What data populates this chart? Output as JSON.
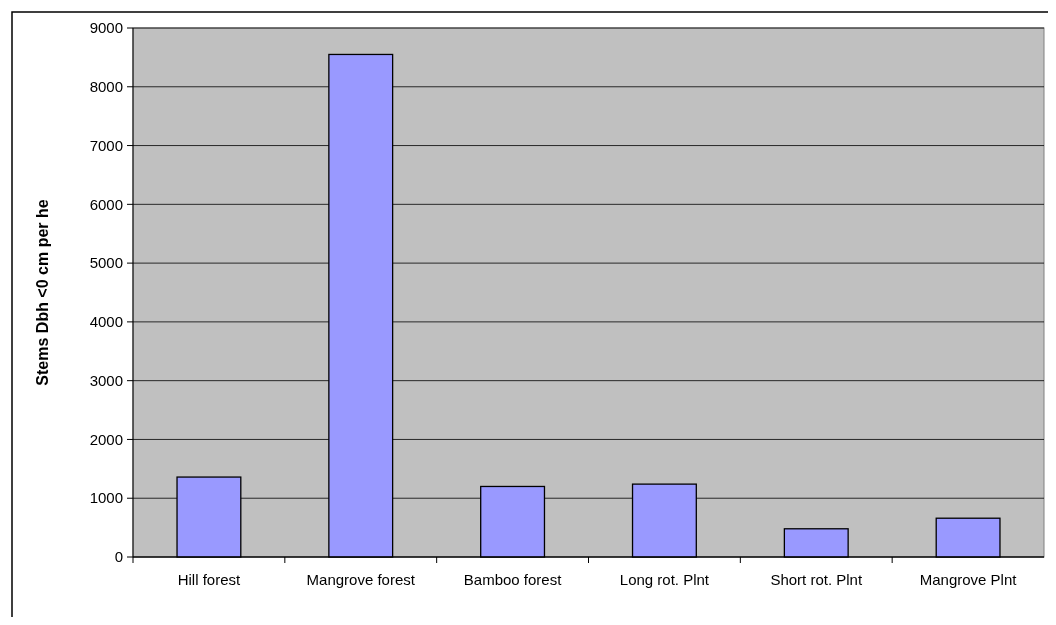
{
  "chart_data": {
    "type": "bar",
    "ylabel": "Stems Dbh <0 cm per he",
    "categories": [
      "Hill forest",
      "Mangrove forest",
      "Bamboo forest",
      "Long rot. Plnt",
      "Short rot. Plnt",
      "Mangrove Plnt"
    ],
    "values": [
      1360,
      8550,
      1200,
      1240,
      480,
      660
    ],
    "color": "#9999ff",
    "ylim": [
      0,
      9000
    ],
    "yticks": [
      0,
      1000,
      2000,
      3000,
      4000,
      5000,
      6000,
      7000,
      8000,
      9000
    ],
    "grid": "y"
  }
}
